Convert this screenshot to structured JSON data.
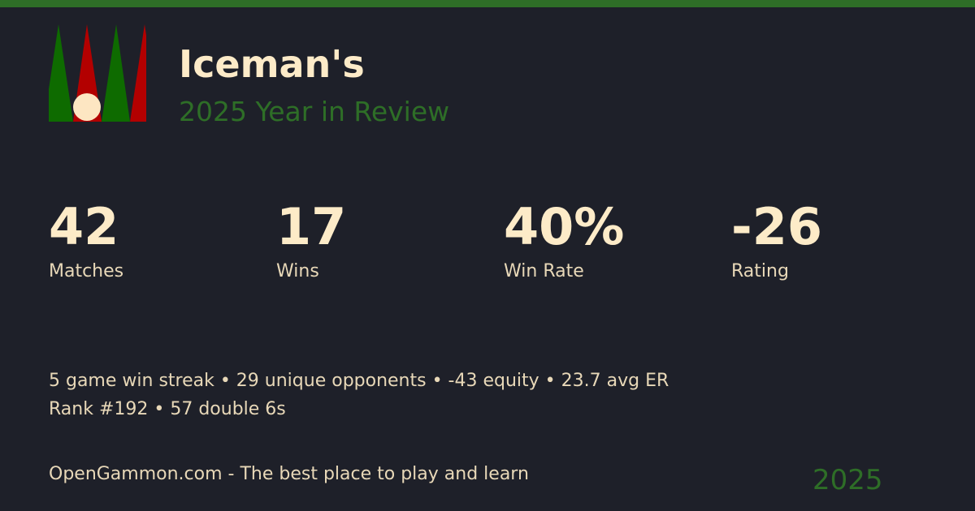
{
  "colors": {
    "accent": "#2e6e27",
    "text": "#fdebc8",
    "green": "#0e6b00",
    "red": "#b30000",
    "checker": "#fde6c2"
  },
  "header": {
    "title": "Iceman's",
    "subtitle": "2025 Year in Review"
  },
  "stats": [
    {
      "value": "42",
      "label": "Matches"
    },
    {
      "value": "17",
      "label": "Wins"
    },
    {
      "value": "40%",
      "label": "Win Rate"
    },
    {
      "value": "-26",
      "label": "Rating"
    }
  ],
  "extra": {
    "line1": "5 game win streak • 29 unique opponents • -43 equity • 23.7 avg ER",
    "line2": "Rank #192 • 57 double 6s"
  },
  "footer": {
    "tagline": "OpenGammon.com - The best place to play and learn",
    "year": "2025"
  }
}
